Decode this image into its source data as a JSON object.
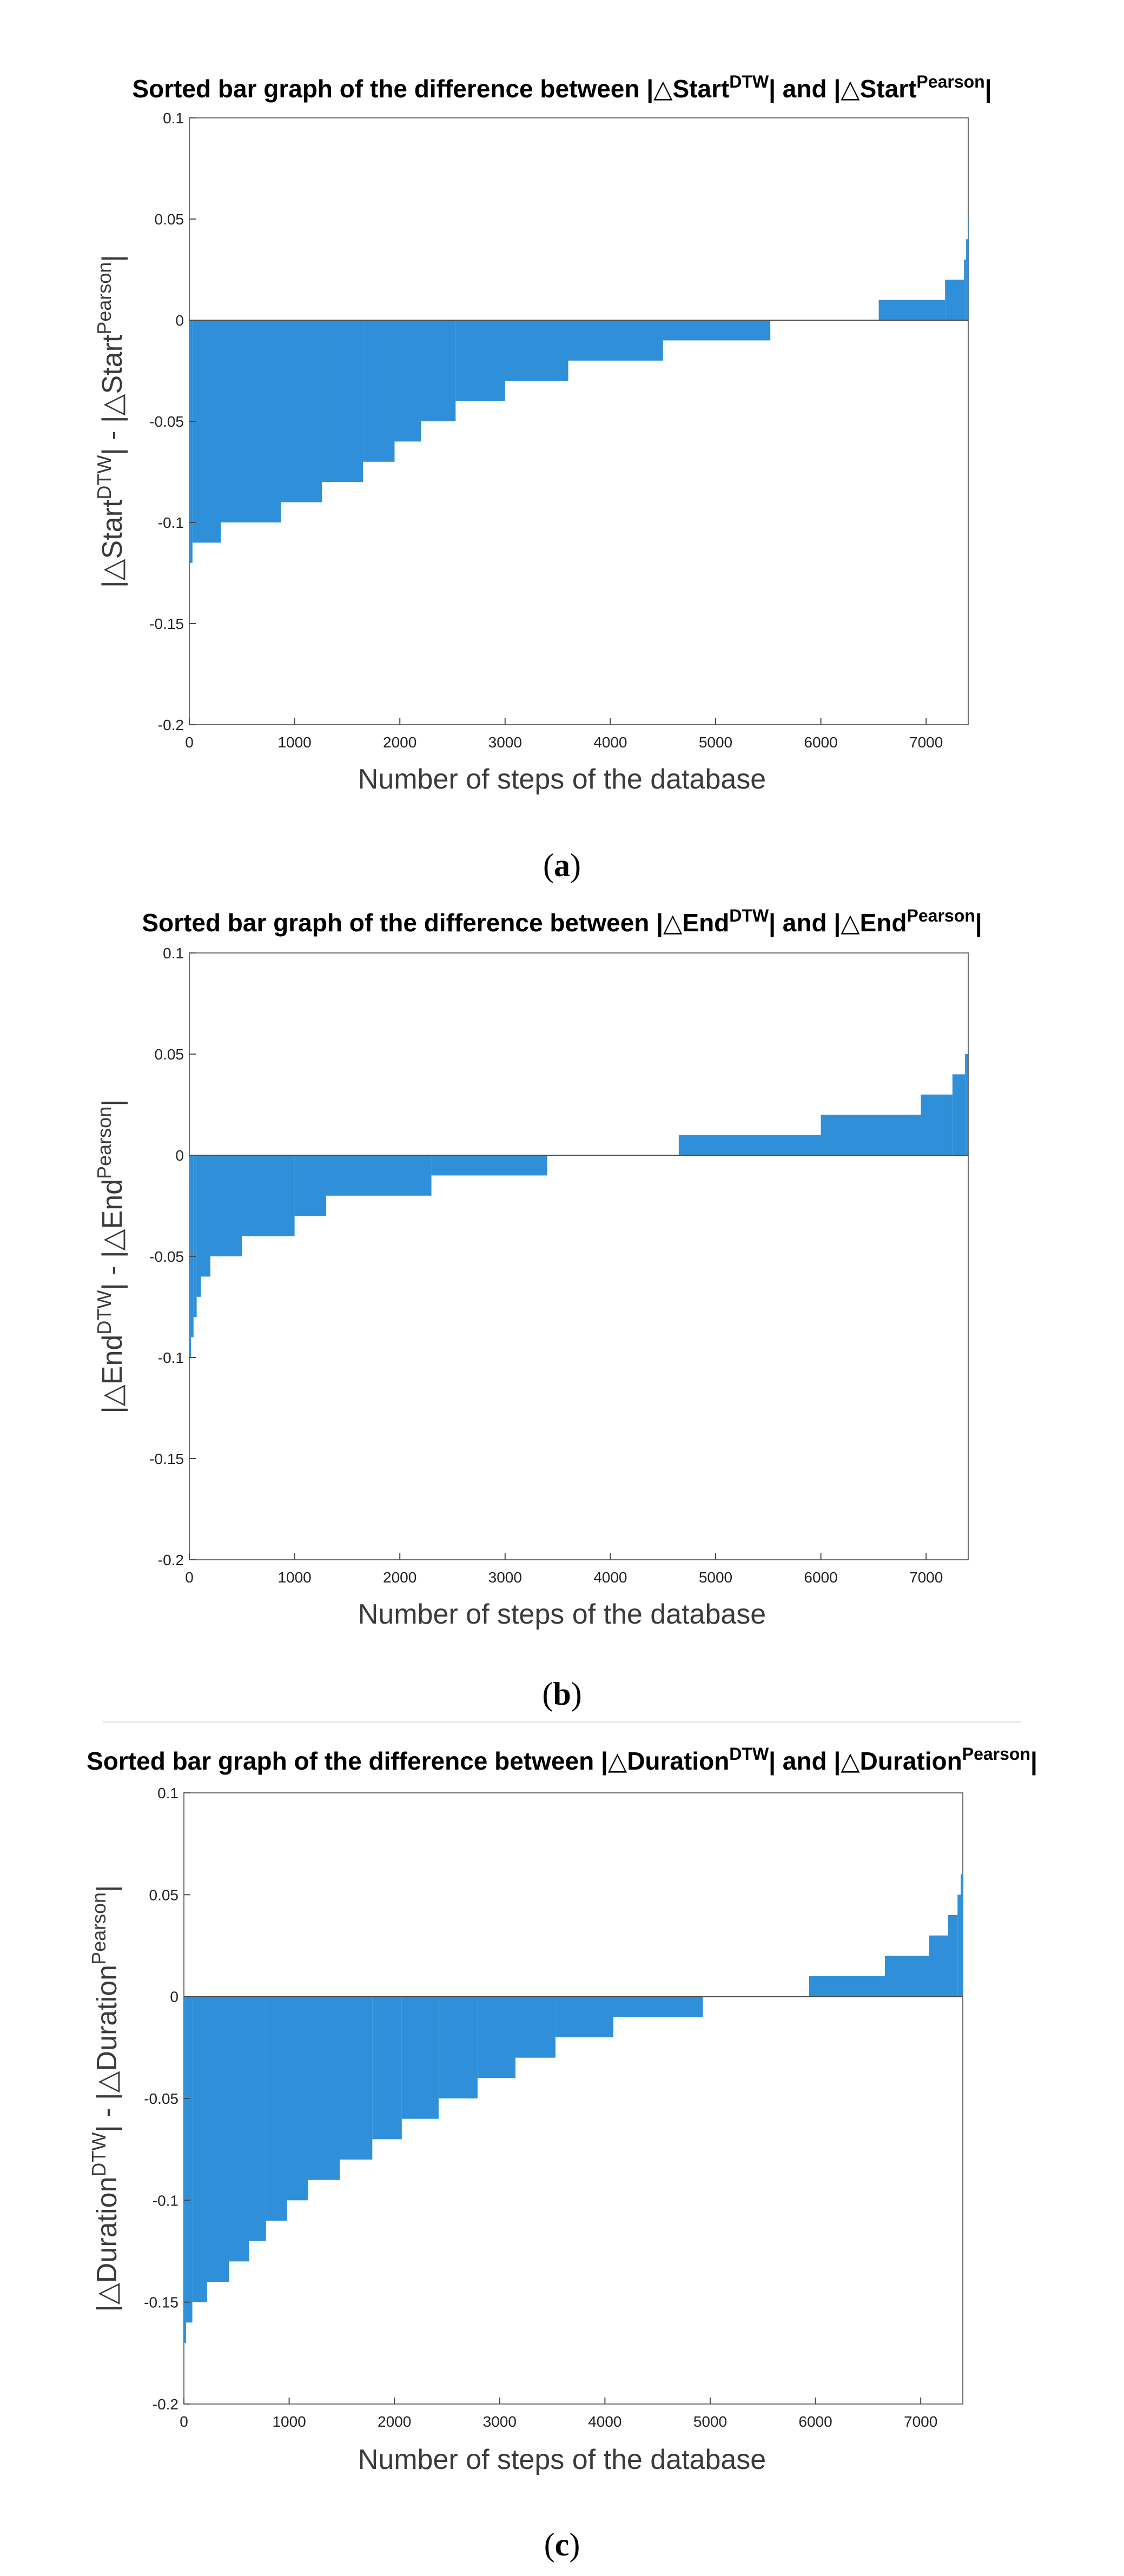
{
  "chart_data": [
    {
      "type": "bar",
      "panel": "a",
      "caption": "(a)",
      "caption_letter": "a",
      "title": "Sorted bar graph of the difference between |△Start^DTW| and |△Start^Pearson|",
      "title_parts": {
        "pre": "Sorted bar graph of the difference between |△Start",
        "sup1": "DTW",
        "mid": "| and |△Start",
        "sup2": "Pearson",
        "post": "|"
      },
      "xlabel": "Number of steps of the database",
      "ylabel": "|△Start^DTW| - |△Start^Pearson|",
      "ylabel_parts": {
        "pre": "|△Start",
        "sup1": "DTW",
        "mid": "| - |△Start",
        "sup2": "Pearson",
        "post": "|"
      },
      "xlim": [
        0,
        7400
      ],
      "ylim": [
        -0.2,
        0.1
      ],
      "xticks": [
        0,
        1000,
        2000,
        3000,
        4000,
        5000,
        6000,
        7000
      ],
      "xtick_labels": [
        "0",
        "1000",
        "2000",
        "3000",
        "4000",
        "5000",
        "6000",
        "7000"
      ],
      "yticks": [
        0.1,
        0.05,
        0,
        -0.05,
        -0.1,
        -0.15,
        -0.2
      ],
      "ytick_labels": [
        "0.1",
        "0.05",
        "0",
        "-0.05",
        "-0.1",
        "-0.15",
        "-0.2"
      ],
      "bar_color": "#2f8fd8",
      "segments": [
        {
          "x_start": 0,
          "x_end": 30,
          "value": -0.12
        },
        {
          "x_start": 30,
          "x_end": 300,
          "value": -0.11
        },
        {
          "x_start": 300,
          "x_end": 870,
          "value": -0.1
        },
        {
          "x_start": 870,
          "x_end": 1260,
          "value": -0.09
        },
        {
          "x_start": 1260,
          "x_end": 1650,
          "value": -0.08
        },
        {
          "x_start": 1650,
          "x_end": 1950,
          "value": -0.07
        },
        {
          "x_start": 1950,
          "x_end": 2200,
          "value": -0.06
        },
        {
          "x_start": 2200,
          "x_end": 2530,
          "value": -0.05
        },
        {
          "x_start": 2530,
          "x_end": 3000,
          "value": -0.04
        },
        {
          "x_start": 3000,
          "x_end": 3600,
          "value": -0.03
        },
        {
          "x_start": 3600,
          "x_end": 4500,
          "value": -0.02
        },
        {
          "x_start": 4500,
          "x_end": 5520,
          "value": -0.01
        },
        {
          "x_start": 6550,
          "x_end": 7180,
          "value": 0.01
        },
        {
          "x_start": 7180,
          "x_end": 7360,
          "value": 0.02
        },
        {
          "x_start": 7360,
          "x_end": 7380,
          "value": 0.03
        },
        {
          "x_start": 7380,
          "x_end": 7395,
          "value": 0.04
        },
        {
          "x_start": 7395,
          "x_end": 7400,
          "value": 0.05
        }
      ]
    },
    {
      "type": "bar",
      "panel": "b",
      "caption": "(b)",
      "caption_letter": "b",
      "title": "Sorted bar graph of the difference between |△End^DTW| and |△End^Pearson|",
      "title_parts": {
        "pre": "Sorted bar graph of the difference between |△End",
        "sup1": "DTW",
        "mid": "| and |△End",
        "sup2": "Pearson",
        "post": "|"
      },
      "xlabel": "Number of steps of the database",
      "ylabel": "|△End^DTW| - |△End^Pearson|",
      "ylabel_parts": {
        "pre": "|△End",
        "sup1": "DTW",
        "mid": "| - |△End",
        "sup2": "Pearson",
        "post": "|"
      },
      "xlim": [
        0,
        7400
      ],
      "ylim": [
        -0.2,
        0.1
      ],
      "xticks": [
        0,
        1000,
        2000,
        3000,
        4000,
        5000,
        6000,
        7000
      ],
      "xtick_labels": [
        "0",
        "1000",
        "2000",
        "3000",
        "4000",
        "5000",
        "6000",
        "7000"
      ],
      "yticks": [
        0.1,
        0.05,
        0,
        -0.05,
        -0.1,
        -0.15,
        -0.2
      ],
      "ytick_labels": [
        "0.1",
        "0.05",
        "0",
        "-0.05",
        "-0.1",
        "-0.15",
        "-0.2"
      ],
      "bar_color": "#2f8fd8",
      "segments": [
        {
          "x_start": 0,
          "x_end": 15,
          "value": -0.1
        },
        {
          "x_start": 15,
          "x_end": 40,
          "value": -0.09
        },
        {
          "x_start": 40,
          "x_end": 70,
          "value": -0.08
        },
        {
          "x_start": 70,
          "x_end": 110,
          "value": -0.07
        },
        {
          "x_start": 110,
          "x_end": 200,
          "value": -0.06
        },
        {
          "x_start": 200,
          "x_end": 500,
          "value": -0.05
        },
        {
          "x_start": 500,
          "x_end": 1000,
          "value": -0.04
        },
        {
          "x_start": 1000,
          "x_end": 1300,
          "value": -0.03
        },
        {
          "x_start": 1300,
          "x_end": 2300,
          "value": -0.02
        },
        {
          "x_start": 2300,
          "x_end": 3400,
          "value": -0.01
        },
        {
          "x_start": 4650,
          "x_end": 6000,
          "value": 0.01
        },
        {
          "x_start": 6000,
          "x_end": 6950,
          "value": 0.02
        },
        {
          "x_start": 6950,
          "x_end": 7250,
          "value": 0.03
        },
        {
          "x_start": 7250,
          "x_end": 7370,
          "value": 0.04
        },
        {
          "x_start": 7370,
          "x_end": 7400,
          "value": 0.05
        }
      ]
    },
    {
      "type": "bar",
      "panel": "c",
      "caption": "(c)",
      "caption_letter": "c",
      "title": "Sorted bar graph of the difference between |△Duration^DTW| and |△Duration^Pearson|",
      "title_parts": {
        "pre": "Sorted bar graph of the difference between |△Duration",
        "sup1": "DTW",
        "mid": "| and |△Duration",
        "sup2": "Pearson",
        "post": "|"
      },
      "xlabel": "Number of steps of the database",
      "ylabel": "|△Duration^DTW| - |△Duration^Pearson|",
      "ylabel_parts": {
        "pre": "|△Duration",
        "sup1": "DTW",
        "mid": "| - |△Duration",
        "sup2": "Pearson",
        "post": "|"
      },
      "xlim": [
        0,
        7400
      ],
      "ylim": [
        -0.2,
        0.1
      ],
      "xticks": [
        0,
        1000,
        2000,
        3000,
        4000,
        5000,
        6000,
        7000
      ],
      "xtick_labels": [
        "0",
        "1000",
        "2000",
        "3000",
        "4000",
        "5000",
        "6000",
        "7000"
      ],
      "yticks": [
        0.1,
        0.05,
        0,
        -0.05,
        -0.1,
        -0.15,
        -0.2
      ],
      "ytick_labels": [
        "0.1",
        "0.05",
        "0",
        "-0.05",
        "-0.1",
        "-0.15",
        "-0.2"
      ],
      "bar_color": "#2f8fd8",
      "segments": [
        {
          "x_start": 0,
          "x_end": 20,
          "value": -0.17
        },
        {
          "x_start": 20,
          "x_end": 80,
          "value": -0.16
        },
        {
          "x_start": 80,
          "x_end": 220,
          "value": -0.15
        },
        {
          "x_start": 220,
          "x_end": 430,
          "value": -0.14
        },
        {
          "x_start": 430,
          "x_end": 620,
          "value": -0.13
        },
        {
          "x_start": 620,
          "x_end": 780,
          "value": -0.12
        },
        {
          "x_start": 780,
          "x_end": 980,
          "value": -0.11
        },
        {
          "x_start": 980,
          "x_end": 1180,
          "value": -0.1
        },
        {
          "x_start": 1180,
          "x_end": 1480,
          "value": -0.09
        },
        {
          "x_start": 1480,
          "x_end": 1790,
          "value": -0.08
        },
        {
          "x_start": 1790,
          "x_end": 2070,
          "value": -0.07
        },
        {
          "x_start": 2070,
          "x_end": 2420,
          "value": -0.06
        },
        {
          "x_start": 2420,
          "x_end": 2790,
          "value": -0.05
        },
        {
          "x_start": 2790,
          "x_end": 3150,
          "value": -0.04
        },
        {
          "x_start": 3150,
          "x_end": 3530,
          "value": -0.03
        },
        {
          "x_start": 3530,
          "x_end": 4080,
          "value": -0.02
        },
        {
          "x_start": 4080,
          "x_end": 4930,
          "value": -0.01
        },
        {
          "x_start": 5940,
          "x_end": 6660,
          "value": 0.01
        },
        {
          "x_start": 6660,
          "x_end": 7080,
          "value": 0.02
        },
        {
          "x_start": 7080,
          "x_end": 7260,
          "value": 0.03
        },
        {
          "x_start": 7260,
          "x_end": 7350,
          "value": 0.04
        },
        {
          "x_start": 7350,
          "x_end": 7380,
          "value": 0.05
        },
        {
          "x_start": 7380,
          "x_end": 7400,
          "value": 0.06
        }
      ]
    }
  ]
}
